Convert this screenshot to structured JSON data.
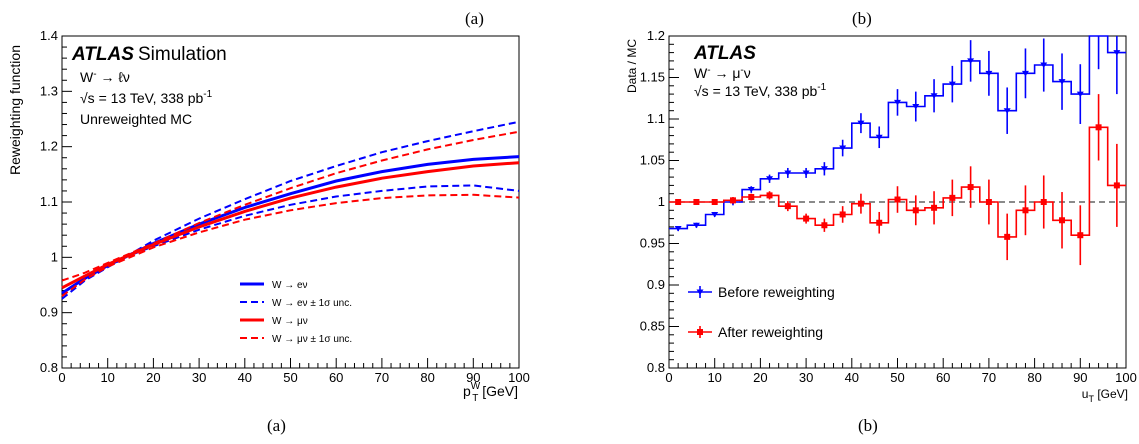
{
  "charts": {
    "left": {
      "panel_letter_top": "(a)",
      "caption": "(a)",
      "atlas": "ATLAS",
      "atlas_suffix": "Simulation",
      "process_line_1": "W",
      "process_line_1_sup": "-",
      "process_line_1_rest": " → ℓν",
      "energy_line": "√s = 13 TeV, 338 pb",
      "energy_sup": "-1",
      "extra_line": "Unreweighted MC",
      "ylabel": "Reweighting function",
      "xlabel_main": "p",
      "xlabel_sub": "T",
      "xlabel_sup": "W",
      "xlabel_unit": " [GeV]",
      "xticks": [
        "0",
        "10",
        "20",
        "30",
        "40",
        "50",
        "60",
        "70",
        "80",
        "90",
        "100"
      ],
      "yticks": [
        "0.8",
        "0.9",
        "1",
        "1.1",
        "1.2",
        "1.3",
        "1.4"
      ]
    },
    "right": {
      "panel_letter_top": "(b)",
      "caption": "(b)",
      "atlas": "ATLAS",
      "process_line_1": "W",
      "process_line_1_sup": "-",
      "process_line_1_rest": " → μ",
      "process_line_1_sup2": "-",
      "process_line_1_tail": "ν",
      "energy_line": "√s = 13 TeV, 338 pb",
      "energy_sup": "-1",
      "ylabel": "Data / MC",
      "xlabel_main": "u",
      "xlabel_sub": "T",
      "xlabel_unit": " [GeV]",
      "xticks": [
        "0",
        "10",
        "20",
        "30",
        "40",
        "50",
        "60",
        "70",
        "80",
        "90",
        "100"
      ],
      "yticks": [
        "0.8",
        "0.85",
        "0.9",
        "0.95",
        "1",
        "1.05",
        "1.1",
        "1.15",
        "1.2"
      ]
    }
  },
  "chart_data": [
    {
      "type": "line",
      "xlabel": "p_T^W [GeV]",
      "ylabel": "Reweighting function",
      "xlim": [
        0,
        100
      ],
      "ylim": [
        0.8,
        1.4
      ],
      "legend_placement": "bottom-right",
      "x": [
        0,
        5,
        10,
        20,
        30,
        40,
        50,
        60,
        70,
        80,
        90,
        100
      ],
      "series": [
        {
          "name": "W → eν",
          "color": "#0000ff",
          "style": "solid",
          "values": [
            0.935,
            0.962,
            0.985,
            1.025,
            1.06,
            1.09,
            1.115,
            1.138,
            1.155,
            1.168,
            1.177,
            1.182
          ]
        },
        {
          "name": "W → eν ± 1σ unc.",
          "color": "#0000ff",
          "style": "dashed",
          "values": [
            0.925,
            0.958,
            0.982,
            1.03,
            1.07,
            1.105,
            1.138,
            1.165,
            1.19,
            1.21,
            1.228,
            1.245
          ]
        },
        {
          "name": "",
          "color": "#0000ff",
          "style": "dashed",
          "values": [
            0.945,
            0.966,
            0.988,
            1.02,
            1.05,
            1.075,
            1.095,
            1.11,
            1.12,
            1.128,
            1.13,
            1.12
          ]
        },
        {
          "name": "W → μν",
          "color": "#ff0000",
          "style": "solid",
          "values": [
            0.945,
            0.966,
            0.987,
            1.023,
            1.055,
            1.083,
            1.107,
            1.127,
            1.143,
            1.155,
            1.165,
            1.171
          ]
        },
        {
          "name": "W → μν ± 1σ unc.",
          "color": "#ff0000",
          "style": "dashed",
          "values": [
            0.958,
            0.972,
            0.99,
            1.025,
            1.062,
            1.095,
            1.125,
            1.152,
            1.175,
            1.195,
            1.212,
            1.227
          ]
        },
        {
          "name": "",
          "color": "#ff0000",
          "style": "dashed",
          "values": [
            0.93,
            0.96,
            0.983,
            1.018,
            1.045,
            1.068,
            1.085,
            1.098,
            1.107,
            1.112,
            1.113,
            1.108
          ]
        }
      ]
    },
    {
      "type": "line",
      "xlabel": "u_T [GeV]",
      "ylabel": "Data / MC",
      "xlim": [
        0,
        100
      ],
      "ylim": [
        0.8,
        1.2
      ],
      "reference_line": 1.0,
      "legend_placement": "bottom-left",
      "bin_edges": [
        0,
        4,
        8,
        12,
        16,
        20,
        24,
        28,
        32,
        36,
        40,
        44,
        48,
        52,
        56,
        60,
        64,
        68,
        72,
        76,
        80,
        84,
        88,
        92,
        96,
        100
      ],
      "series": [
        {
          "name": "Before reweighting",
          "color": "#0000ff",
          "marker": "triangle-down",
          "values": [
            0.968,
            0.972,
            0.985,
            1.0,
            1.015,
            1.028,
            1.035,
            1.035,
            1.04,
            1.065,
            1.095,
            1.078,
            1.12,
            1.115,
            1.128,
            1.142,
            1.17,
            1.155,
            1.11,
            1.155,
            1.165,
            1.145,
            1.13,
            1.21,
            1.18
          ],
          "errors": [
            0.003,
            0.003,
            0.003,
            0.004,
            0.004,
            0.005,
            0.006,
            0.006,
            0.008,
            0.01,
            0.012,
            0.013,
            0.016,
            0.018,
            0.02,
            0.022,
            0.025,
            0.027,
            0.028,
            0.03,
            0.032,
            0.034,
            0.036,
            0.05,
            0.05
          ]
        },
        {
          "name": "After reweighting",
          "color": "#ff0000",
          "marker": "square",
          "values": [
            1.0,
            1.0,
            1.0,
            1.002,
            1.006,
            1.008,
            0.995,
            0.98,
            0.972,
            0.985,
            0.998,
            0.975,
            1.003,
            0.99,
            0.993,
            1.005,
            1.018,
            1.0,
            0.958,
            0.99,
            1.0,
            0.978,
            0.96,
            1.09,
            1.02
          ],
          "errors": [
            0.003,
            0.003,
            0.003,
            0.004,
            0.004,
            0.005,
            0.006,
            0.006,
            0.008,
            0.01,
            0.012,
            0.013,
            0.016,
            0.018,
            0.02,
            0.022,
            0.025,
            0.027,
            0.028,
            0.03,
            0.032,
            0.034,
            0.036,
            0.04,
            0.05
          ]
        }
      ]
    }
  ]
}
